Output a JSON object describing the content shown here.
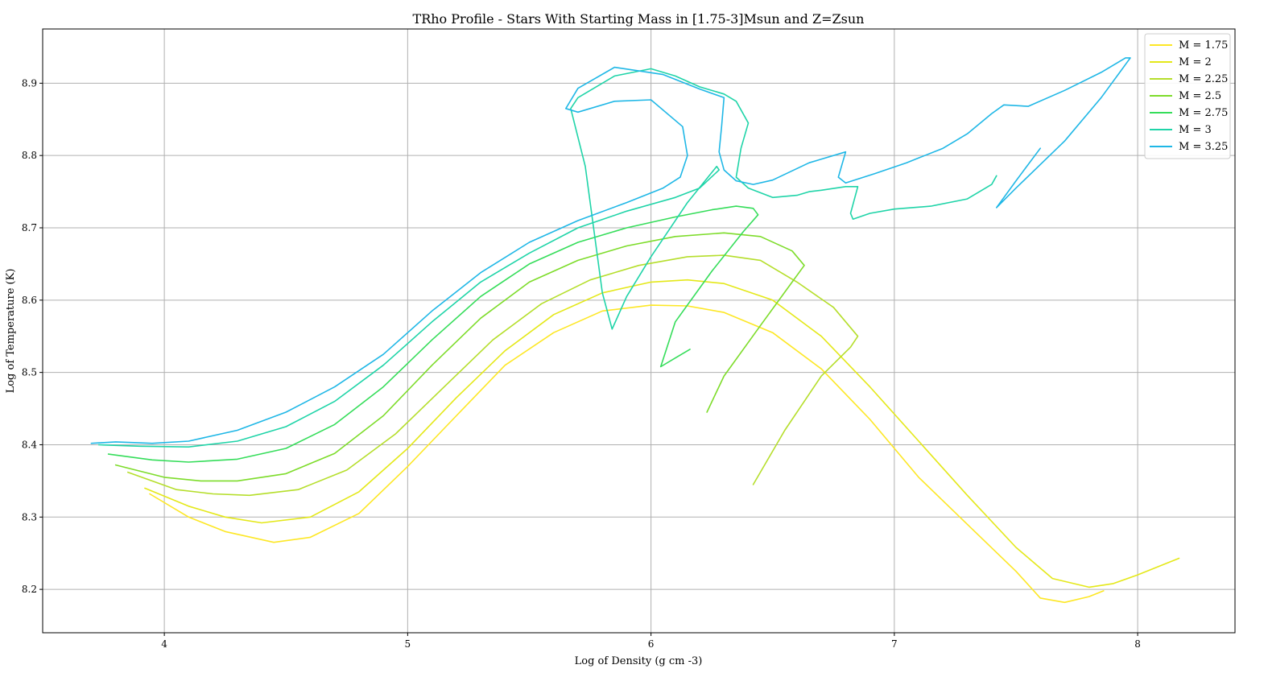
{
  "chart_data": {
    "type": "line",
    "title": "TRho Profile - Stars With Starting Mass in [1.75-3]Msun and Z=Zsun",
    "xlabel": "Log of Density (g cm -3)",
    "ylabel": "Log of Temperature (K)",
    "xlim": [
      3.5,
      8.4
    ],
    "ylim": [
      8.14,
      8.975
    ],
    "xticks": [
      "4",
      "5",
      "6",
      "7",
      "8"
    ],
    "yticks": [
      "8.2",
      "8.3",
      "8.4",
      "8.5",
      "8.6",
      "8.7",
      "8.8",
      "8.9"
    ],
    "grid": true,
    "legend_position": "top-right",
    "series": [
      {
        "name": "M = 1.75",
        "color": "#fde725",
        "points": [
          [
            3.94,
            8.332
          ],
          [
            4.1,
            8.3
          ],
          [
            4.25,
            8.28
          ],
          [
            4.45,
            8.265
          ],
          [
            4.6,
            8.272
          ],
          [
            4.8,
            8.305
          ],
          [
            5.0,
            8.37
          ],
          [
            5.2,
            8.44
          ],
          [
            5.4,
            8.51
          ],
          [
            5.6,
            8.555
          ],
          [
            5.8,
            8.585
          ],
          [
            6.0,
            8.593
          ],
          [
            6.15,
            8.592
          ],
          [
            6.3,
            8.583
          ],
          [
            6.5,
            8.555
          ],
          [
            6.7,
            8.505
          ],
          [
            6.9,
            8.435
          ],
          [
            7.1,
            8.355
          ],
          [
            7.3,
            8.29
          ],
          [
            7.5,
            8.225
          ],
          [
            7.6,
            8.188
          ],
          [
            7.7,
            8.182
          ],
          [
            7.8,
            8.19
          ],
          [
            7.86,
            8.198
          ]
        ]
      },
      {
        "name": "M = 2",
        "color": "#e4e819",
        "points": [
          [
            3.92,
            8.34
          ],
          [
            4.1,
            8.315
          ],
          [
            4.25,
            8.3
          ],
          [
            4.4,
            8.292
          ],
          [
            4.6,
            8.3
          ],
          [
            4.8,
            8.335
          ],
          [
            5.0,
            8.395
          ],
          [
            5.2,
            8.465
          ],
          [
            5.4,
            8.53
          ],
          [
            5.6,
            8.58
          ],
          [
            5.8,
            8.61
          ],
          [
            6.0,
            8.625
          ],
          [
            6.15,
            8.628
          ],
          [
            6.3,
            8.623
          ],
          [
            6.5,
            8.6
          ],
          [
            6.7,
            8.55
          ],
          [
            6.9,
            8.48
          ],
          [
            7.1,
            8.405
          ],
          [
            7.3,
            8.33
          ],
          [
            7.5,
            8.258
          ],
          [
            7.65,
            8.215
          ],
          [
            7.8,
            8.203
          ],
          [
            7.9,
            8.208
          ],
          [
            8.0,
            8.22
          ],
          [
            8.17,
            8.243
          ]
        ]
      },
      {
        "name": "M = 2.25",
        "color": "#b5de2b",
        "points": [
          [
            3.85,
            8.362
          ],
          [
            4.05,
            8.338
          ],
          [
            4.2,
            8.332
          ],
          [
            4.35,
            8.33
          ],
          [
            4.55,
            8.338
          ],
          [
            4.75,
            8.365
          ],
          [
            4.95,
            8.415
          ],
          [
            5.15,
            8.48
          ],
          [
            5.35,
            8.545
          ],
          [
            5.55,
            8.595
          ],
          [
            5.75,
            8.628
          ],
          [
            5.95,
            8.648
          ],
          [
            6.15,
            8.66
          ],
          [
            6.3,
            8.662
          ],
          [
            6.45,
            8.655
          ],
          [
            6.6,
            8.625
          ],
          [
            6.75,
            8.59
          ],
          [
            6.85,
            8.55
          ],
          [
            6.82,
            8.535
          ],
          [
            6.7,
            8.495
          ],
          [
            6.55,
            8.42
          ],
          [
            6.42,
            8.345
          ]
        ]
      },
      {
        "name": "M = 2.5",
        "color": "#7ddc2a",
        "points": [
          [
            3.8,
            8.372
          ],
          [
            4.0,
            8.355
          ],
          [
            4.15,
            8.35
          ],
          [
            4.3,
            8.35
          ],
          [
            4.5,
            8.36
          ],
          [
            4.7,
            8.388
          ],
          [
            4.9,
            8.44
          ],
          [
            5.1,
            8.51
          ],
          [
            5.3,
            8.575
          ],
          [
            5.5,
            8.625
          ],
          [
            5.7,
            8.655
          ],
          [
            5.9,
            8.675
          ],
          [
            6.1,
            8.688
          ],
          [
            6.3,
            8.693
          ],
          [
            6.45,
            8.688
          ],
          [
            6.58,
            8.668
          ],
          [
            6.63,
            8.648
          ],
          [
            6.58,
            8.625
          ],
          [
            6.45,
            8.565
          ],
          [
            6.3,
            8.495
          ],
          [
            6.23,
            8.445
          ]
        ]
      },
      {
        "name": "M = 2.75",
        "color": "#35dd5a",
        "points": [
          [
            3.77,
            8.387
          ],
          [
            3.95,
            8.379
          ],
          [
            4.1,
            8.376
          ],
          [
            4.3,
            8.38
          ],
          [
            4.5,
            8.395
          ],
          [
            4.7,
            8.428
          ],
          [
            4.9,
            8.48
          ],
          [
            5.1,
            8.545
          ],
          [
            5.3,
            8.605
          ],
          [
            5.5,
            8.65
          ],
          [
            5.7,
            8.68
          ],
          [
            5.9,
            8.7
          ],
          [
            6.1,
            8.715
          ],
          [
            6.25,
            8.725
          ],
          [
            6.35,
            8.73
          ],
          [
            6.42,
            8.727
          ],
          [
            6.44,
            8.718
          ],
          [
            6.38,
            8.695
          ],
          [
            6.25,
            8.64
          ],
          [
            6.1,
            8.57
          ],
          [
            6.04,
            8.508
          ],
          [
            6.1,
            8.52
          ],
          [
            6.16,
            8.532
          ]
        ]
      },
      {
        "name": "M = 3",
        "color": "#1fd4a8",
        "points": [
          [
            3.73,
            8.4
          ],
          [
            3.9,
            8.398
          ],
          [
            4.1,
            8.397
          ],
          [
            4.3,
            8.405
          ],
          [
            4.5,
            8.425
          ],
          [
            4.7,
            8.46
          ],
          [
            4.9,
            8.51
          ],
          [
            5.1,
            8.57
          ],
          [
            5.3,
            8.625
          ],
          [
            5.5,
            8.665
          ],
          [
            5.7,
            8.7
          ],
          [
            5.9,
            8.723
          ],
          [
            6.1,
            8.742
          ],
          [
            6.2,
            8.755
          ],
          [
            6.28,
            8.78
          ],
          [
            6.27,
            8.785
          ],
          [
            6.15,
            8.735
          ],
          [
            6.0,
            8.66
          ],
          [
            5.9,
            8.605
          ],
          [
            5.84,
            8.56
          ],
          [
            5.8,
            8.61
          ],
          [
            5.73,
            8.785
          ],
          [
            5.67,
            8.865
          ],
          [
            5.7,
            8.88
          ],
          [
            5.85,
            8.91
          ],
          [
            6.0,
            8.92
          ],
          [
            6.1,
            8.91
          ],
          [
            6.2,
            8.895
          ],
          [
            6.3,
            8.885
          ],
          [
            6.35,
            8.875
          ],
          [
            6.4,
            8.845
          ],
          [
            6.37,
            8.81
          ],
          [
            6.35,
            8.77
          ],
          [
            6.4,
            8.755
          ],
          [
            6.5,
            8.742
          ],
          [
            6.6,
            8.745
          ],
          [
            6.65,
            8.75
          ],
          [
            6.7,
            8.752
          ],
          [
            6.8,
            8.757
          ],
          [
            6.85,
            8.757
          ],
          [
            6.82,
            8.72
          ],
          [
            6.83,
            8.712
          ],
          [
            6.9,
            8.72
          ],
          [
            7.0,
            8.726
          ],
          [
            7.15,
            8.73
          ],
          [
            7.3,
            8.74
          ],
          [
            7.4,
            8.76
          ],
          [
            7.42,
            8.772
          ]
        ]
      },
      {
        "name": "M = 3.25",
        "color": "#1fb7e6",
        "points": [
          [
            3.7,
            8.402
          ],
          [
            3.8,
            8.404
          ],
          [
            3.95,
            8.402
          ],
          [
            4.1,
            8.405
          ],
          [
            4.3,
            8.42
          ],
          [
            4.5,
            8.445
          ],
          [
            4.7,
            8.48
          ],
          [
            4.9,
            8.525
          ],
          [
            5.1,
            8.585
          ],
          [
            5.3,
            8.638
          ],
          [
            5.5,
            8.68
          ],
          [
            5.7,
            8.71
          ],
          [
            5.9,
            8.735
          ],
          [
            6.05,
            8.755
          ],
          [
            6.12,
            8.77
          ],
          [
            6.15,
            8.8
          ],
          [
            6.13,
            8.84
          ],
          [
            6.0,
            8.877
          ],
          [
            5.85,
            8.875
          ],
          [
            5.7,
            8.86
          ],
          [
            5.65,
            8.865
          ],
          [
            5.7,
            8.893
          ],
          [
            5.85,
            8.922
          ],
          [
            6.05,
            8.912
          ],
          [
            6.2,
            8.892
          ],
          [
            6.3,
            8.88
          ],
          [
            6.29,
            8.84
          ],
          [
            6.28,
            8.805
          ],
          [
            6.3,
            8.78
          ],
          [
            6.35,
            8.765
          ],
          [
            6.42,
            8.76
          ],
          [
            6.5,
            8.766
          ],
          [
            6.65,
            8.79
          ],
          [
            6.8,
            8.805
          ],
          [
            6.77,
            8.77
          ],
          [
            6.8,
            8.762
          ],
          [
            6.92,
            8.775
          ],
          [
            7.05,
            8.79
          ],
          [
            7.2,
            8.81
          ],
          [
            7.3,
            8.83
          ],
          [
            7.4,
            8.858
          ],
          [
            7.45,
            8.87
          ],
          [
            7.55,
            8.868
          ],
          [
            7.7,
            8.89
          ],
          [
            7.85,
            8.915
          ],
          [
            7.95,
            8.935
          ],
          [
            7.97,
            8.935
          ],
          [
            7.85,
            8.88
          ],
          [
            7.7,
            8.82
          ],
          [
            7.5,
            8.755
          ],
          [
            7.42,
            8.728
          ],
          [
            7.5,
            8.765
          ],
          [
            7.6,
            8.81
          ]
        ]
      }
    ]
  }
}
